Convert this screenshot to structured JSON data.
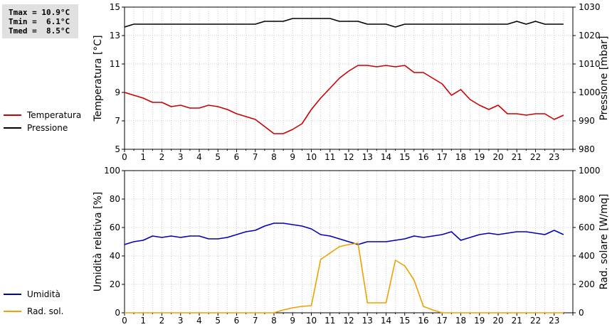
{
  "stats": {
    "tmax": "Tmax = 10.9°C",
    "tmin": "Tmin =  6.1°C",
    "tmed": "Tmed =  8.5°C"
  },
  "colors": {
    "temperature": "#cc0000",
    "pressure": "#000000",
    "humidity": "#0000bb",
    "solar": "#f0a000",
    "grid": "#c8c8c8"
  },
  "chart_data": [
    {
      "type": "line",
      "grid": true,
      "legend_position": "left",
      "xlabel": "",
      "x_ticks": [
        "0",
        "1",
        "2",
        "3",
        "4",
        "5",
        "6",
        "7",
        "8",
        "9",
        "10",
        "11",
        "12",
        "13",
        "14",
        "15",
        "16",
        "17",
        "18",
        "19",
        "20",
        "21",
        "22",
        "23"
      ],
      "ylabel_left": "Temperatura [°C]",
      "ylim_left": [
        5,
        15
      ],
      "yticks_left": [
        "5",
        "7",
        "9",
        "11",
        "13",
        "15"
      ],
      "ylabel_right": "Pressione [mbar]",
      "ylim_right": [
        980,
        1030
      ],
      "yticks_right": [
        "980",
        "990",
        "1000",
        "1010",
        "1020",
        "1030"
      ],
      "series": [
        {
          "name": "Temperatura",
          "axis": "left",
          "x": [
            0,
            0.5,
            1,
            1.5,
            2,
            2.5,
            3,
            3.5,
            4,
            4.5,
            5,
            5.5,
            6,
            6.5,
            7,
            7.5,
            8,
            8.5,
            9,
            9.5,
            10,
            10.5,
            11,
            11.5,
            12,
            12.5,
            13,
            13.5,
            14,
            14.5,
            15,
            15.5,
            16,
            16.5,
            17,
            17.5,
            18,
            18.5,
            19,
            19.5,
            20,
            20.5,
            21,
            21.5,
            22,
            22.5,
            23,
            23.5
          ],
          "values": [
            9.0,
            8.8,
            8.6,
            8.3,
            8.3,
            8.0,
            8.1,
            7.9,
            7.9,
            8.1,
            8.0,
            7.8,
            7.5,
            7.3,
            7.1,
            6.6,
            6.1,
            6.1,
            6.4,
            6.8,
            7.8,
            8.6,
            9.3,
            10.0,
            10.5,
            10.9,
            10.9,
            10.8,
            10.9,
            10.8,
            10.9,
            10.4,
            10.4,
            10.0,
            9.6,
            8.8,
            9.2,
            8.5,
            8.1,
            7.8,
            8.1,
            7.5,
            7.5,
            7.4,
            7.5,
            7.5,
            7.1,
            7.4
          ]
        },
        {
          "name": "Pressione",
          "axis": "right",
          "x": [
            0,
            0.5,
            1,
            1.5,
            2,
            2.5,
            3,
            3.5,
            4,
            4.5,
            5,
            5.5,
            6,
            6.5,
            7,
            7.5,
            8,
            8.5,
            9,
            9.5,
            10,
            10.5,
            11,
            11.5,
            12,
            12.5,
            13,
            13.5,
            14,
            14.5,
            15,
            15.5,
            16,
            16.5,
            17,
            17.5,
            18,
            18.5,
            19,
            19.5,
            20,
            20.5,
            21,
            21.5,
            22,
            22.5,
            23,
            23.5
          ],
          "values": [
            1023,
            1024,
            1024,
            1024,
            1024,
            1024,
            1024,
            1024,
            1024,
            1024,
            1024,
            1024,
            1024,
            1024,
            1024,
            1025,
            1025,
            1025,
            1026,
            1026,
            1026,
            1026,
            1026,
            1025,
            1025,
            1025,
            1024,
            1024,
            1024,
            1023,
            1024,
            1024,
            1024,
            1024,
            1024,
            1024,
            1024,
            1024,
            1024,
            1024,
            1024,
            1024,
            1025,
            1024,
            1025,
            1024,
            1024,
            1024
          ]
        }
      ]
    },
    {
      "type": "line",
      "grid": true,
      "legend_position": "left",
      "xlabel": "",
      "x_ticks": [
        "0",
        "1",
        "2",
        "3",
        "4",
        "5",
        "6",
        "7",
        "8",
        "9",
        "10",
        "11",
        "12",
        "13",
        "14",
        "15",
        "16",
        "17",
        "18",
        "19",
        "20",
        "21",
        "22",
        "23"
      ],
      "ylabel_left": "Umidità relativa [%]",
      "ylim_left": [
        0,
        100
      ],
      "yticks_left": [
        "0",
        "20",
        "40",
        "60",
        "80",
        "100"
      ],
      "ylabel_right": "Rad. solare [W/mq]",
      "ylim_right": [
        0,
        1000
      ],
      "yticks_right": [
        "0",
        "200",
        "400",
        "600",
        "800",
        "1000"
      ],
      "series": [
        {
          "name": "Umidità",
          "axis": "left",
          "x": [
            0,
            0.5,
            1,
            1.5,
            2,
            2.5,
            3,
            3.5,
            4,
            4.5,
            5,
            5.5,
            6,
            6.5,
            7,
            7.5,
            8,
            8.5,
            9,
            9.5,
            10,
            10.5,
            11,
            11.5,
            12,
            12.5,
            13,
            13.5,
            14,
            14.5,
            15,
            15.5,
            16,
            16.5,
            17,
            17.5,
            18,
            18.5,
            19,
            19.5,
            20,
            20.5,
            21,
            21.5,
            22,
            22.5,
            23,
            23.5
          ],
          "values": [
            48,
            50,
            51,
            54,
            53,
            54,
            53,
            54,
            54,
            52,
            52,
            53,
            55,
            57,
            58,
            61,
            63,
            63,
            62,
            61,
            59,
            55,
            54,
            52,
            50,
            48,
            50,
            50,
            50,
            51,
            52,
            54,
            53,
            54,
            55,
            57,
            51,
            53,
            55,
            56,
            55,
            56,
            57,
            57,
            56,
            55,
            58,
            55
          ]
        },
        {
          "name": "Rad. sol.",
          "axis": "right",
          "x": [
            0,
            0.5,
            1,
            1.5,
            2,
            2.5,
            3,
            3.5,
            4,
            4.5,
            5,
            5.5,
            6,
            6.5,
            7,
            7.5,
            8,
            8.5,
            9,
            9.5,
            10,
            10.5,
            11,
            11.5,
            12,
            12.5,
            13,
            13.5,
            14,
            14.5,
            15,
            15.5,
            16,
            16.5,
            17,
            17.5,
            18,
            18.5,
            19,
            19.5,
            20,
            20.5,
            21,
            21.5,
            22,
            22.5,
            23,
            23.5
          ],
          "values": [
            0,
            0,
            0,
            0,
            0,
            0,
            0,
            0,
            0,
            0,
            0,
            0,
            0,
            0,
            0,
            0,
            0,
            20,
            35,
            45,
            50,
            375,
            420,
            465,
            480,
            490,
            70,
            70,
            70,
            370,
            330,
            230,
            45,
            20,
            0,
            0,
            0,
            0,
            0,
            0,
            0,
            0,
            0,
            0,
            0,
            0,
            0,
            0
          ]
        }
      ]
    }
  ]
}
